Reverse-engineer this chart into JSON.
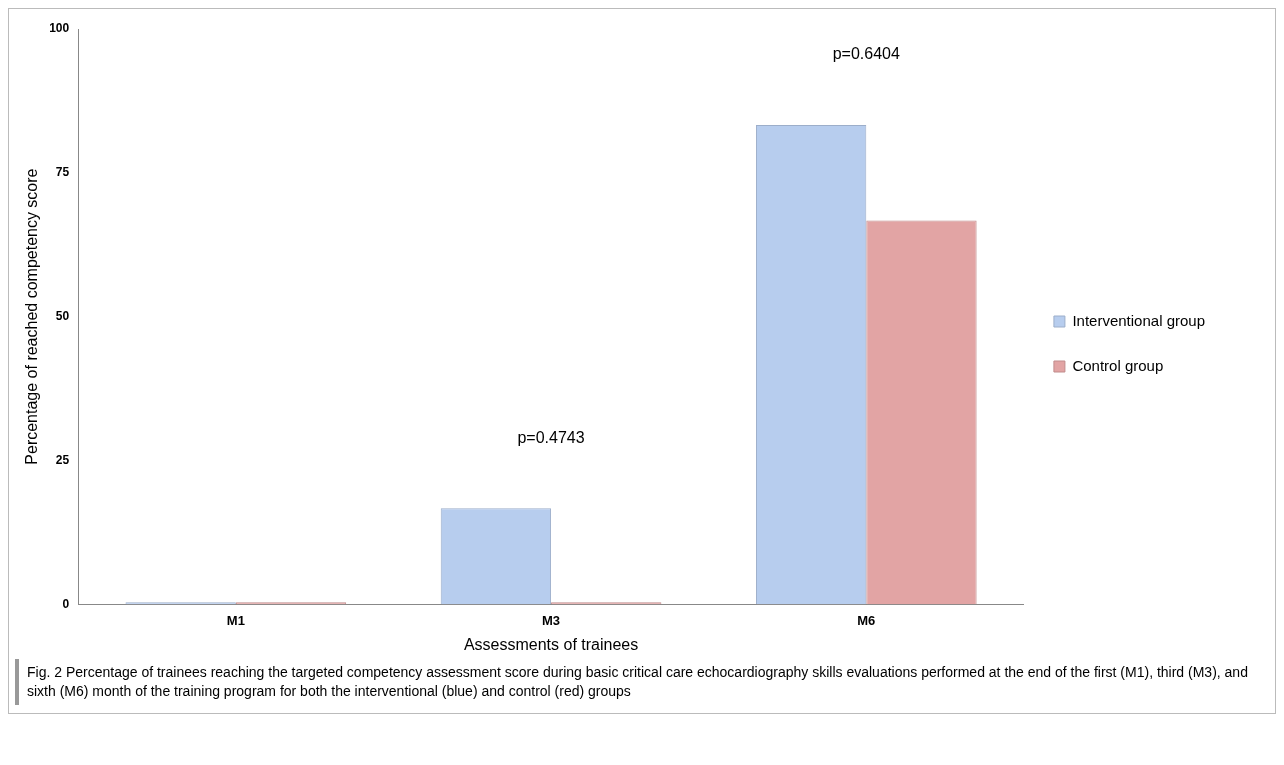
{
  "chart_data": {
    "type": "bar",
    "xlabel": "Assessments of trainees",
    "ylabel": "Percentage of reached competency score",
    "categories": [
      "M1",
      "M3",
      "M6"
    ],
    "series": [
      {
        "name": "Interventional group",
        "color": "#b7cdee",
        "values": [
          0,
          16.7,
          83.3
        ]
      },
      {
        "name": "Control group",
        "color": "#e2a4a4",
        "values": [
          0,
          0,
          66.7
        ]
      }
    ],
    "ylim": [
      0,
      100
    ],
    "yticks": [
      0,
      25,
      50,
      75,
      100
    ],
    "grid": false,
    "legend": "right",
    "annotations": [
      "p=0.4743",
      "p=0.6404",
      "Fig. 2  Percentage of trainees reaching the targeted competency assessment score during basic critical care echocardiography skills evaluations performed at the end of the first (M1), third (M3), and sixth (M6) month of the training program for both the interventional (blue) and control (red) groups"
    ]
  }
}
